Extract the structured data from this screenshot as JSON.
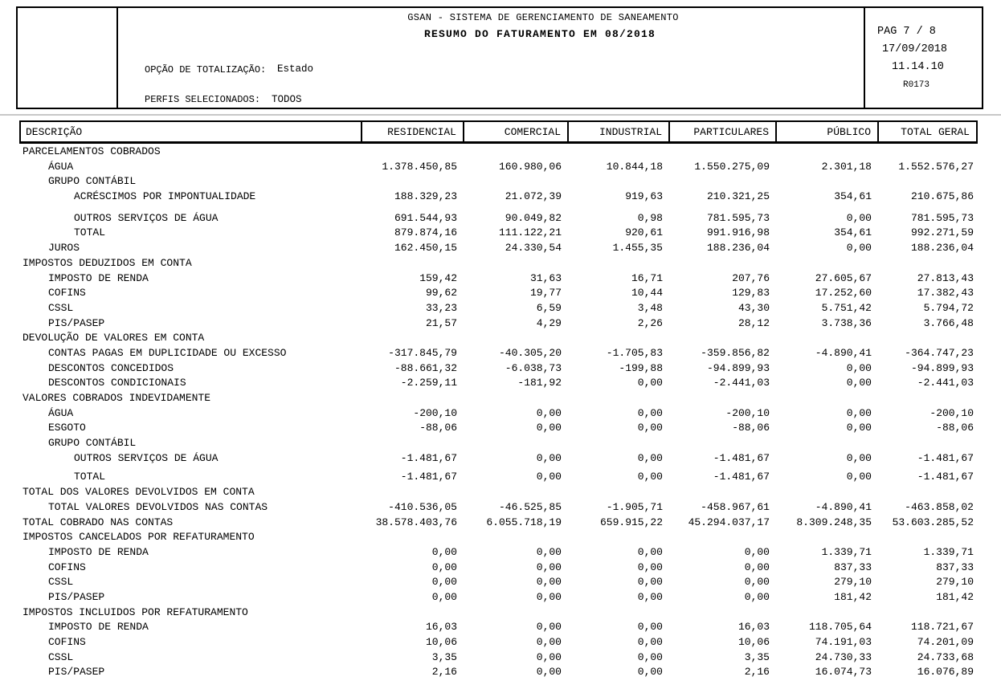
{
  "report": {
    "system_title": "GSAN - SISTEMA DE GERENCIAMENTO DE SANEAMENTO",
    "report_title": "RESUMO DO FATURAMENTO EM  08/2018",
    "totalization_label": "OPÇÃO DE TOTALIZAÇÃO:",
    "totalization_value": "Estado",
    "profiles_label": "PERFIS SELECIONADOS:",
    "profiles_value": "TODOS",
    "page_info": "PAG 7 / 8",
    "date": "17/09/2018",
    "time": "11.14.10",
    "report_code": "R0173"
  },
  "table": {
    "columns": [
      "DESCRIÇÃO",
      "RESIDENCIAL",
      "COMERCIAL",
      "INDUSTRIAL",
      "PARTICULARES",
      "PÚBLICO",
      "TOTAL GERAL"
    ],
    "rows": [
      {
        "label": "PARCELAMENTOS COBRADOS",
        "indent": 0,
        "values": null
      },
      {
        "label": "ÁGUA",
        "indent": 1,
        "values": [
          "1.378.450,85",
          "160.980,06",
          "10.844,18",
          "1.550.275,09",
          "2.301,18",
          "1.552.576,27"
        ]
      },
      {
        "label": "GRUPO CONTÁBIL",
        "indent": 1,
        "values": null
      },
      {
        "label": "ACRÉSCIMOS POR IMPONTUALIDADE",
        "indent": 2,
        "values": [
          "188.329,23",
          "21.072,39",
          "919,63",
          "210.321,25",
          "354,61",
          "210.675,86"
        ]
      },
      {
        "label": "OUTROS SERVIÇOS DE ÁGUA",
        "indent": 2,
        "values": [
          "691.544,93",
          "90.049,82",
          "0,98",
          "781.595,73",
          "0,00",
          "781.595,73"
        ]
      },
      {
        "label": "TOTAL",
        "indent": 2,
        "values": [
          "879.874,16",
          "111.122,21",
          "920,61",
          "991.916,98",
          "354,61",
          "992.271,59"
        ]
      },
      {
        "label": "JUROS",
        "indent": 1,
        "values": [
          "162.450,15",
          "24.330,54",
          "1.455,35",
          "188.236,04",
          "0,00",
          "188.236,04"
        ]
      },
      {
        "label": "IMPOSTOS DEDUZIDOS EM CONTA",
        "indent": 0,
        "values": null
      },
      {
        "label": "IMPOSTO DE RENDA",
        "indent": 1,
        "values": [
          "159,42",
          "31,63",
          "16,71",
          "207,76",
          "27.605,67",
          "27.813,43"
        ]
      },
      {
        "label": "COFINS",
        "indent": 1,
        "values": [
          "99,62",
          "19,77",
          "10,44",
          "129,83",
          "17.252,60",
          "17.382,43"
        ]
      },
      {
        "label": "CSSL",
        "indent": 1,
        "values": [
          "33,23",
          "6,59",
          "3,48",
          "43,30",
          "5.751,42",
          "5.794,72"
        ]
      },
      {
        "label": "PIS/PASEP",
        "indent": 1,
        "values": [
          "21,57",
          "4,29",
          "2,26",
          "28,12",
          "3.738,36",
          "3.766,48"
        ]
      },
      {
        "label": "DEVOLUÇÃO DE VALORES EM CONTA",
        "indent": 0,
        "values": null
      },
      {
        "label": "CONTAS PAGAS EM DUPLICIDADE OU EXCESSO",
        "indent": 1,
        "values": [
          "-317.845,79",
          "-40.305,20",
          "-1.705,83",
          "-359.856,82",
          "-4.890,41",
          "-364.747,23"
        ]
      },
      {
        "label": "DESCONTOS CONCEDIDOS",
        "indent": 1,
        "values": [
          "-88.661,32",
          "-6.038,73",
          "-199,88",
          "-94.899,93",
          "0,00",
          "-94.899,93"
        ]
      },
      {
        "label": "DESCONTOS CONDICIONAIS",
        "indent": 1,
        "values": [
          "-2.259,11",
          "-181,92",
          "0,00",
          "-2.441,03",
          "0,00",
          "-2.441,03"
        ]
      },
      {
        "label": "VALORES COBRADOS INDEVIDAMENTE",
        "indent": 0,
        "values": null
      },
      {
        "label": "ÁGUA",
        "indent": 1,
        "values": [
          "-200,10",
          "0,00",
          "0,00",
          "-200,10",
          "0,00",
          "-200,10"
        ]
      },
      {
        "label": "ESGOTO",
        "indent": 1,
        "values": [
          "-88,06",
          "0,00",
          "0,00",
          "-88,06",
          "0,00",
          "-88,06"
        ]
      },
      {
        "label": "GRUPO CONTÁBIL",
        "indent": 1,
        "values": null
      },
      {
        "label": "OUTROS SERVIÇOS DE ÁGUA",
        "indent": 2,
        "values": [
          "-1.481,67",
          "0,00",
          "0,00",
          "-1.481,67",
          "0,00",
          "-1.481,67"
        ]
      },
      {
        "label": "TOTAL",
        "indent": 2,
        "values": [
          "-1.481,67",
          "0,00",
          "0,00",
          "-1.481,67",
          "0,00",
          "-1.481,67"
        ]
      },
      {
        "label": "TOTAL DOS VALORES DEVOLVIDOS EM CONTA",
        "indent": 0,
        "values": null
      },
      {
        "label": "TOTAL VALORES DEVOLVIDOS NAS CONTAS",
        "indent": 1,
        "values": [
          "-410.536,05",
          "-46.525,85",
          "-1.905,71",
          "-458.967,61",
          "-4.890,41",
          "-463.858,02"
        ]
      },
      {
        "label": "TOTAL COBRADO NAS CONTAS",
        "indent": 0,
        "values": [
          "38.578.403,76",
          "6.055.718,19",
          "659.915,22",
          "45.294.037,17",
          "8.309.248,35",
          "53.603.285,52"
        ]
      },
      {
        "label": "IMPOSTOS CANCELADOS POR REFATURAMENTO",
        "indent": 0,
        "values": null
      },
      {
        "label": "IMPOSTO DE RENDA",
        "indent": 1,
        "values": [
          "0,00",
          "0,00",
          "0,00",
          "0,00",
          "1.339,71",
          "1.339,71"
        ]
      },
      {
        "label": "COFINS",
        "indent": 1,
        "values": [
          "0,00",
          "0,00",
          "0,00",
          "0,00",
          "837,33",
          "837,33"
        ]
      },
      {
        "label": "CSSL",
        "indent": 1,
        "values": [
          "0,00",
          "0,00",
          "0,00",
          "0,00",
          "279,10",
          "279,10"
        ]
      },
      {
        "label": "PIS/PASEP",
        "indent": 1,
        "values": [
          "0,00",
          "0,00",
          "0,00",
          "0,00",
          "181,42",
          "181,42"
        ]
      },
      {
        "label": "IMPOSTOS INCLUIDOS POR REFATURAMENTO",
        "indent": 0,
        "values": null
      },
      {
        "label": "IMPOSTO DE RENDA",
        "indent": 1,
        "values": [
          "16,03",
          "0,00",
          "0,00",
          "16,03",
          "118.705,64",
          "118.721,67"
        ]
      },
      {
        "label": "COFINS",
        "indent": 1,
        "values": [
          "10,06",
          "0,00",
          "0,00",
          "10,06",
          "74.191,03",
          "74.201,09"
        ]
      },
      {
        "label": "CSSL",
        "indent": 1,
        "values": [
          "3,35",
          "0,00",
          "0,00",
          "3,35",
          "24.730,33",
          "24.733,68"
        ]
      },
      {
        "label": "PIS/PASEP",
        "indent": 1,
        "values": [
          "2,16",
          "0,00",
          "0,00",
          "2,16",
          "16.074,73",
          "16.076,89"
        ]
      }
    ]
  }
}
